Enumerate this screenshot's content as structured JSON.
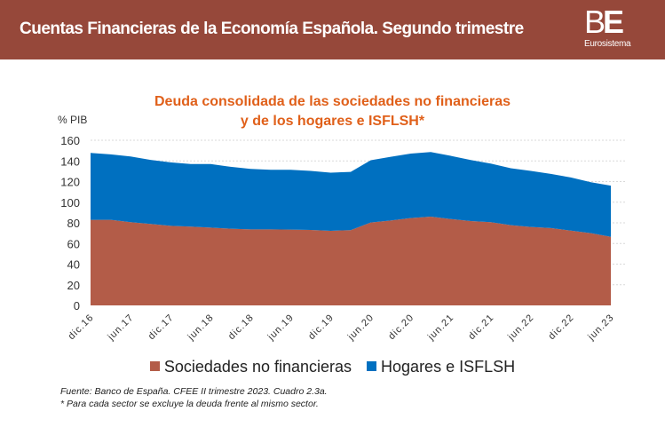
{
  "header": {
    "title": "Cuentas Financieras de la Economía Española. Segundo trimestre",
    "logo": "BE",
    "logo_sub": "Eurosistema"
  },
  "colors": {
    "header": "#96483a",
    "title": "#e0601a",
    "snf": "#b35c48",
    "hogares": "#0070c0"
  },
  "chart_data": {
    "type": "area",
    "stacked": true,
    "title": "Deuda consolidada de las sociedades no financieras y de los hogares e ISFLSH*",
    "title_lines": [
      "Deuda consolidada de las sociedades no financieras",
      "y de los hogares e ISFLSH*"
    ],
    "ylabel": "% PIB",
    "ylim": [
      0,
      160
    ],
    "yticks": [
      0,
      20,
      40,
      60,
      80,
      100,
      120,
      140,
      160
    ],
    "grid": true,
    "legend_position": "bottom",
    "categories": [
      "dic.16",
      "mar.17",
      "jun.17",
      "sep.17",
      "dic.17",
      "mar.18",
      "jun.18",
      "sep.18",
      "dic.18",
      "mar.19",
      "jun.19",
      "sep.19",
      "dic.19",
      "mar.20",
      "jun.20",
      "sep.20",
      "dic.20",
      "mar.21",
      "jun.21",
      "sep.21",
      "dic.21",
      "mar.22",
      "jun.22",
      "sep.22",
      "dic.22",
      "mar.23",
      "jun.23"
    ],
    "tick_labels": [
      "dic.16",
      "jun.17",
      "dic.17",
      "jun.18",
      "dic.18",
      "jun.19",
      "dic.19",
      "jun.20",
      "dic.20",
      "jun.21",
      "dic.21",
      "jun.22",
      "dic.22",
      "jun.23"
    ],
    "series": [
      {
        "name": "Sociedades no financieras",
        "color": "#b35c48",
        "values": [
          82.9,
          82.9,
          80.6,
          78.9,
          77.1,
          76.3,
          75.4,
          74.3,
          73.7,
          73.7,
          73.4,
          73.1,
          72.3,
          72.9,
          80.3,
          82.3,
          84.6,
          86.0,
          83.7,
          81.7,
          80.6,
          77.7,
          76.0,
          74.9,
          72.5,
          70.0,
          66.5
        ]
      },
      {
        "name": "Hogares e ISFLSH",
        "color": "#0070c0",
        "values": [
          64.8,
          63.4,
          63.7,
          62.1,
          61.5,
          60.7,
          61.6,
          60.0,
          58.6,
          57.7,
          58.0,
          57.2,
          56.3,
          56.5,
          60.3,
          61.7,
          62.5,
          62.6,
          61.2,
          59.2,
          56.8,
          55.2,
          54.3,
          52.5,
          51.5,
          49.4,
          49.5
        ]
      }
    ]
  },
  "footnotes": {
    "source": "Fuente: Banco de España. CFEE II trimestre 2023. Cuadro 2.3a.",
    "note": "* Para cada sector se excluye la deuda frente al mismo sector."
  }
}
